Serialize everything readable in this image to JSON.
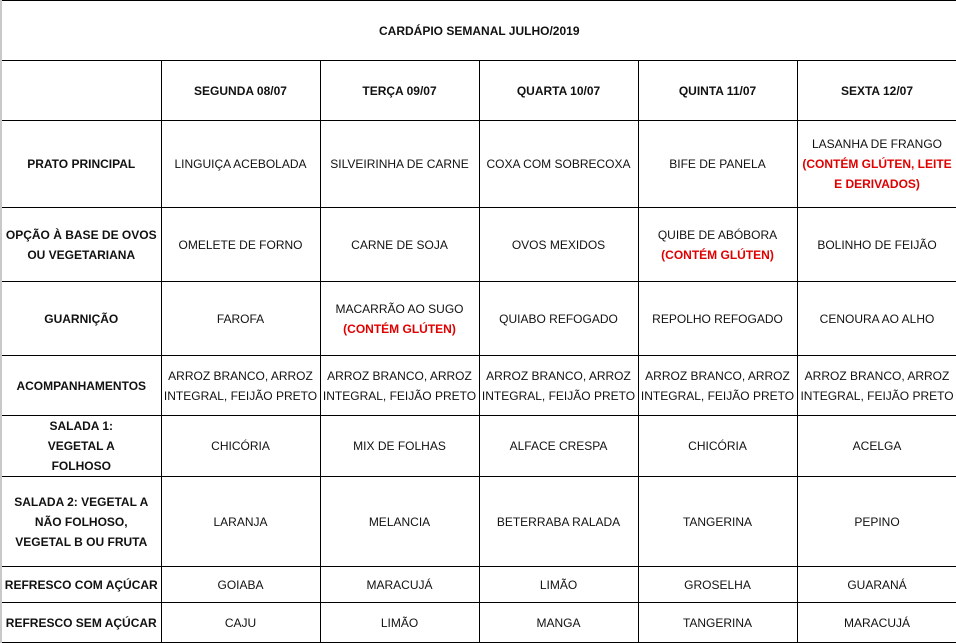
{
  "title": "CARDÁPIO SEMANAL JULHO/2019",
  "days": [
    "SEGUNDA   08/07",
    "TERÇA 09/07",
    "QUARTA 10/07",
    "QUINTA 11/07",
    "SEXTA 12/07"
  ],
  "colors": {
    "allergen_note": "#e00000",
    "grid": "#000000"
  },
  "rows": [
    {
      "label": "PRATO PRINCIPAL",
      "cells": [
        {
          "text": "LINGUIÇA ACEBOLADA"
        },
        {
          "text": "SILVEIRINHA DE CARNE"
        },
        {
          "text": "COXA COM SOBRECOXA"
        },
        {
          "text": "BIFE DE PANELA"
        },
        {
          "text": "LASANHA DE FRANGO",
          "note": "(CONTÉM GLÚTEN, LEITE E DERIVADOS)"
        }
      ]
    },
    {
      "label": "OPÇÃO À BASE DE OVOS OU VEGETARIANA",
      "cells": [
        {
          "text": "OMELETE DE FORNO"
        },
        {
          "text": "CARNE DE SOJA"
        },
        {
          "text": "OVOS MEXIDOS"
        },
        {
          "text": "QUIBE DE ABÓBORA",
          "note": "(CONTÉM GLÚTEN)"
        },
        {
          "text": "BOLINHO DE FEIJÃO"
        }
      ]
    },
    {
      "label": "GUARNIÇÃO",
      "cells": [
        {
          "text": "FAROFA"
        },
        {
          "text": "MACARRÃO AO SUGO",
          "note": "(CONTÉM GLÚTEN)"
        },
        {
          "text": "QUIABO REFOGADO"
        },
        {
          "text": "REPOLHO REFOGADO"
        },
        {
          "text": "CENOURA AO ALHO"
        }
      ]
    },
    {
      "label": "ACOMPANHAMENTOS",
      "cells": [
        {
          "text": "ARROZ BRANCO, ARROZ INTEGRAL, FEIJÃO PRETO"
        },
        {
          "text": "ARROZ BRANCO, ARROZ INTEGRAL, FEIJÃO PRETO"
        },
        {
          "text": "ARROZ BRANCO, ARROZ INTEGRAL, FEIJÃO PRETO"
        },
        {
          "text": "ARROZ BRANCO, ARROZ INTEGRAL, FEIJÃO PRETO"
        },
        {
          "text": "ARROZ BRANCO, ARROZ INTEGRAL, FEIJÃO PRETO"
        }
      ]
    },
    {
      "label": "SALADA 1: VEGETAL A FOLHOSO",
      "cells": [
        {
          "text": "CHICÓRIA"
        },
        {
          "text": "MIX DE FOLHAS"
        },
        {
          "text": "ALFACE  CRESPA"
        },
        {
          "text": "CHICÓRIA"
        },
        {
          "text": "ACELGA"
        }
      ]
    },
    {
      "label": "SALADA 2: VEGETAL A NÃO FOLHOSO, VEGETAL B OU FRUTA",
      "cells": [
        {
          "text": "LARANJA"
        },
        {
          "text": "MELANCIA"
        },
        {
          "text": "BETERRABA RALADA"
        },
        {
          "text": "TANGERINA"
        },
        {
          "text": "PEPINO"
        }
      ]
    },
    {
      "label": "REFRESCO COM AÇÚCAR",
      "cells": [
        {
          "text": "GOIABA"
        },
        {
          "text": "MARACUJÁ"
        },
        {
          "text": "LIMÃO"
        },
        {
          "text": "GROSELHA"
        },
        {
          "text": "GUARANÁ"
        }
      ]
    },
    {
      "label": "REFRESCO SEM AÇÚCAR",
      "cells": [
        {
          "text": "CAJU"
        },
        {
          "text": "LIMÃO"
        },
        {
          "text": "MANGA"
        },
        {
          "text": "TANGERINA"
        },
        {
          "text": "MARACUJÁ"
        }
      ]
    }
  ]
}
